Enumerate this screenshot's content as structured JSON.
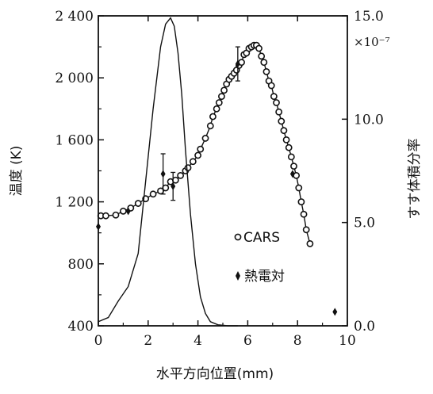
{
  "chart_data": {
    "type": "line",
    "title": "",
    "xlabel": "水平方向位置(mm)",
    "ylabel": "温度 (K)",
    "y2label": "すす体積分率",
    "y2_exponent": "×10⁻⁷",
    "xlim": [
      0,
      10
    ],
    "ylim": [
      400,
      2400
    ],
    "y2lim": [
      0,
      15
    ],
    "x_ticks": [
      "0",
      "2",
      "4",
      "6",
      "8",
      "10"
    ],
    "y_ticks": [
      "400",
      "800",
      "1 200",
      "1 600",
      "2 000",
      "2 400"
    ],
    "y2_ticks": [
      "0.0",
      "5.0",
      "10.0",
      "15.0"
    ],
    "legend": {
      "position": "center-right",
      "entries": [
        "CARS",
        "熱電対"
      ]
    },
    "series": [
      {
        "name": "CARS",
        "axis": "left",
        "style": "open-circle-line",
        "x": [
          0.1,
          0.3,
          0.7,
          1.0,
          1.3,
          1.6,
          1.9,
          2.2,
          2.5,
          2.7,
          2.9,
          3.1,
          3.3,
          3.5,
          3.6,
          3.8,
          4.0,
          4.1,
          4.3,
          4.5,
          4.6,
          4.75,
          4.85,
          4.95,
          5.05,
          5.15,
          5.25,
          5.35,
          5.45,
          5.55,
          5.65,
          5.75,
          5.85,
          5.95,
          6.05,
          6.15,
          6.25,
          6.35,
          6.45,
          6.55,
          6.65,
          6.75,
          6.85,
          6.95,
          7.05,
          7.15,
          7.25,
          7.35,
          7.45,
          7.55,
          7.65,
          7.75,
          7.85,
          7.95,
          8.05,
          8.15,
          8.25,
          8.35,
          8.5
        ],
        "y": [
          1110,
          1110,
          1115,
          1140,
          1160,
          1190,
          1220,
          1250,
          1270,
          1290,
          1330,
          1340,
          1370,
          1400,
          1420,
          1460,
          1500,
          1540,
          1610,
          1690,
          1750,
          1800,
          1840,
          1880,
          1920,
          1960,
          1990,
          2010,
          2030,
          2050,
          2080,
          2100,
          2150,
          2160,
          2190,
          2200,
          2210,
          2210,
          2190,
          2140,
          2100,
          2040,
          1980,
          1950,
          1880,
          1840,
          1780,
          1720,
          1660,
          1600,
          1550,
          1490,
          1430,
          1370,
          1290,
          1200,
          1120,
          1020,
          930
        ]
      },
      {
        "name": "soot-volume-fraction",
        "axis": "right",
        "style": "line",
        "x": [
          0.0,
          0.4,
          0.8,
          1.2,
          1.6,
          1.9,
          2.2,
          2.5,
          2.7,
          2.9,
          3.05,
          3.2,
          3.35,
          3.5,
          3.7,
          3.9,
          4.1,
          4.3,
          4.5,
          4.8,
          5.2,
          5.6
        ],
        "y": [
          0.2,
          0.4,
          1.2,
          1.9,
          3.5,
          7.0,
          10.5,
          13.5,
          14.6,
          14.9,
          14.5,
          13.2,
          11.2,
          8.5,
          5.4,
          3.0,
          1.4,
          0.6,
          0.2,
          0.05,
          0.0,
          0.0
        ]
      },
      {
        "name": "熱電対",
        "axis": "left",
        "style": "filled-diamond-errorbar",
        "x": [
          0.0,
          1.2,
          2.6,
          3.0,
          5.6,
          7.8,
          9.5
        ],
        "y": [
          1040,
          1140,
          1380,
          1300,
          2090,
          1380,
          490
        ],
        "err": [
          0,
          0,
          130,
          90,
          110,
          0,
          0
        ]
      }
    ]
  }
}
